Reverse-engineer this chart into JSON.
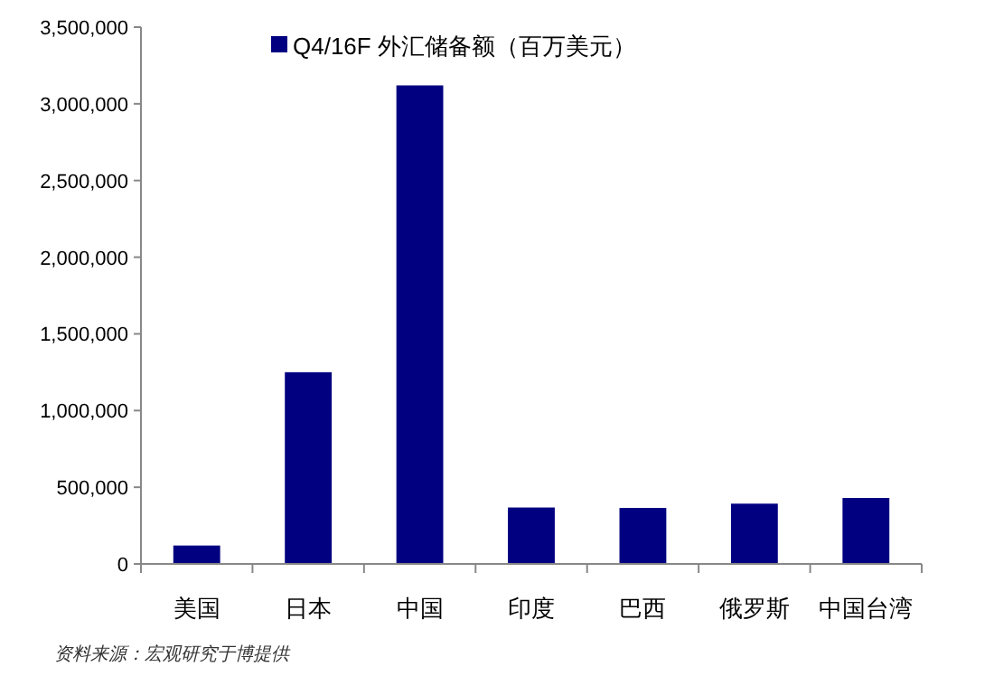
{
  "chart_data": {
    "type": "bar",
    "categories": [
      "美国",
      "日本",
      "中国",
      "印度",
      "巴西",
      "俄罗斯",
      "中国台湾"
    ],
    "series": [
      {
        "name": "Q4/16F 外汇储备额（百万美元）",
        "color": "#000080",
        "values": [
          120000,
          1250000,
          3120000,
          368000,
          365000,
          393000,
          430000
        ]
      }
    ],
    "ylim": [
      0,
      3500000
    ],
    "yticks": [
      {
        "value": 0,
        "label": "0"
      },
      {
        "value": 500000,
        "label": "500,000"
      },
      {
        "value": 1000000,
        "label": "1,000,000"
      },
      {
        "value": 1500000,
        "label": "1,500,000"
      },
      {
        "value": 2000000,
        "label": "2,000,000"
      },
      {
        "value": 2500000,
        "label": "2,500,000"
      },
      {
        "value": 3000000,
        "label": "3,000,000"
      },
      {
        "value": 3500000,
        "label": "3,500,000"
      }
    ],
    "legend": "top",
    "grid": false,
    "annotations": [
      "资料来源：宏观研究于博提供"
    ]
  }
}
